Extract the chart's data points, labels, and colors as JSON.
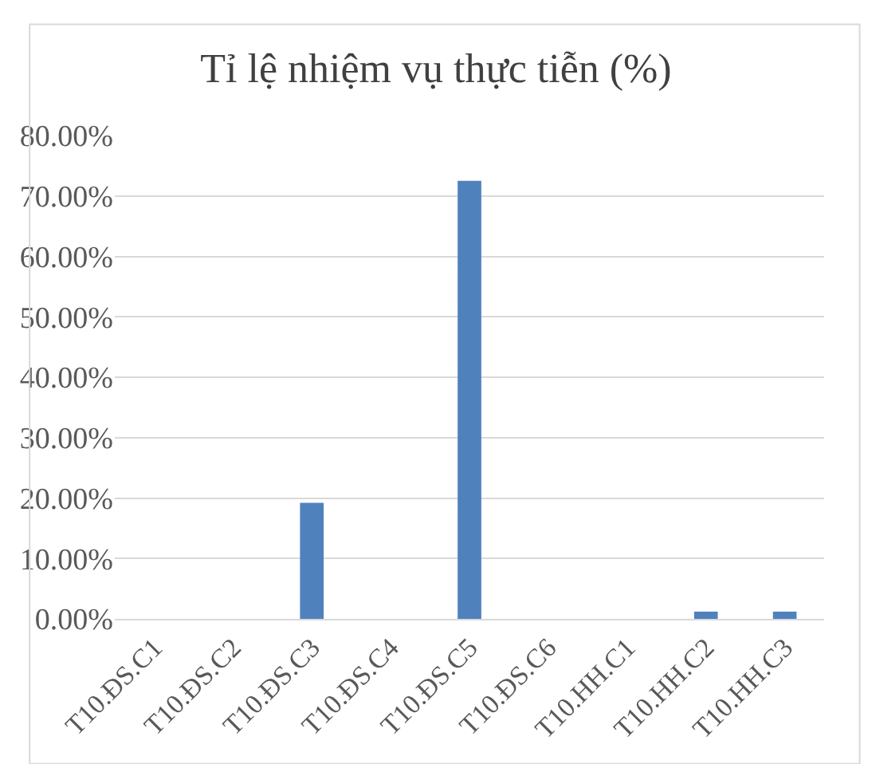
{
  "chart_data": {
    "type": "bar",
    "title": "Tỉ lệ nhiệm vụ thực tiễn (%)",
    "categories": [
      "T10.ĐS.C1",
      "T10.ĐS.C2",
      "T10.ĐS.C3",
      "T10.ĐS.C4",
      "T10.ĐS.C5",
      "T10.ĐS.C6",
      "T10.HH.C1",
      "T10.HH.C2",
      "T10.HH.C3"
    ],
    "values": [
      0,
      0,
      19.2,
      0,
      72.5,
      0,
      0,
      1.2,
      1.2
    ],
    "color": "#4f81bd",
    "ylim": [
      0,
      80
    ],
    "yticks": [
      {
        "value": 0,
        "label": "0.00%"
      },
      {
        "value": 10,
        "label": "10.00%"
      },
      {
        "value": 20,
        "label": "20.00%"
      },
      {
        "value": 30,
        "label": "30.00%"
      },
      {
        "value": 40,
        "label": "40.00%"
      },
      {
        "value": 50,
        "label": "50.00%"
      },
      {
        "value": 60,
        "label": "60.00%"
      },
      {
        "value": 70,
        "label": "70.00%"
      },
      {
        "value": 80,
        "label": "80.00%"
      }
    ],
    "grid": "y",
    "legend": false
  }
}
